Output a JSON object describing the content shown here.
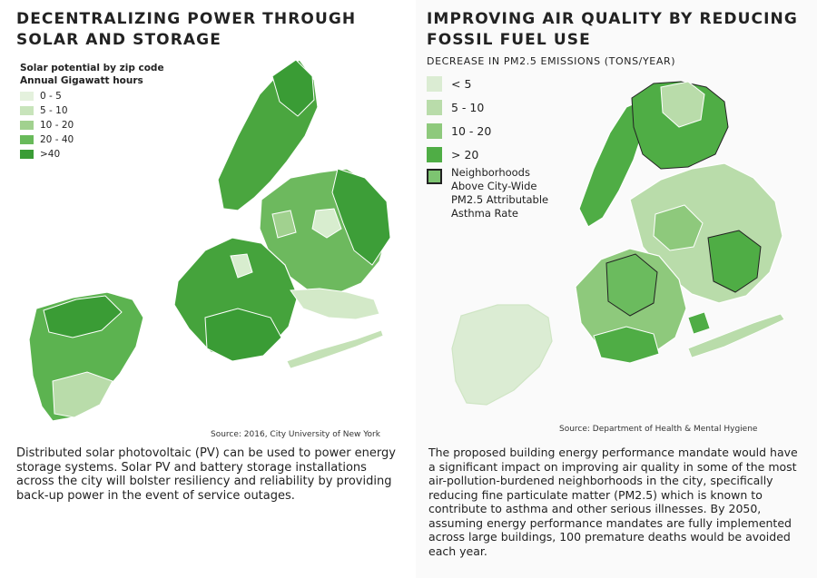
{
  "left": {
    "title": "DECENTRALIZING POWER THROUGH SOLAR AND STORAGE",
    "legend_title_line1": "Solar potential by zip code",
    "legend_title_line2": "Annual Gigawatt hours",
    "legend": [
      {
        "label": "0 - 5",
        "color": "#e4f1dd"
      },
      {
        "label": "5 - 10",
        "color": "#c8e4bb"
      },
      {
        "label": "10 - 20",
        "color": "#a1d18f"
      },
      {
        "label": "20 - 40",
        "color": "#68ba5a"
      },
      {
        "label": ">40",
        "color": "#3a9c35"
      }
    ],
    "source": "Source: 2016, City University of New York",
    "body": "Distributed solar photovoltaic (PV) can be used to power energy storage systems. Solar PV and battery storage installations across the city will bolster resiliency and reliability by providing back-up power in the event of service outages."
  },
  "right": {
    "title": "IMPROVING AIR QUALITY BY REDUCING FOSSIL FUEL USE",
    "subtitle": "DECREASE IN PM2.5 EMISSIONS  (TONS/YEAR)",
    "legend": [
      {
        "label": "< 5",
        "color": "#dbecd3"
      },
      {
        "label": "5 - 10",
        "color": "#b9dcaa"
      },
      {
        "label": "10 - 20",
        "color": "#8ec97c"
      },
      {
        "label": "> 20",
        "color": "#4fad45"
      }
    ],
    "neighborhood_line1": "Neighborhoods",
    "neighborhood_line2": "Above City-Wide",
    "neighborhood_line3": "PM2.5 Attributable",
    "neighborhood_line4": "Asthma Rate",
    "source": "Source: Department of Health & Mental Hygiene",
    "body": "The proposed building energy performance mandate would have a significant impact on improving air quality in some of the most air-pollution-burdened neighborhoods in the city, specifically reducing fine particulate matter (PM2.5) which is known to contribute to asthma and other serious illnesses. By 2050, assuming energy performance mandates are fully implemented across large buildings, 100 premature deaths would be avoided each year."
  }
}
